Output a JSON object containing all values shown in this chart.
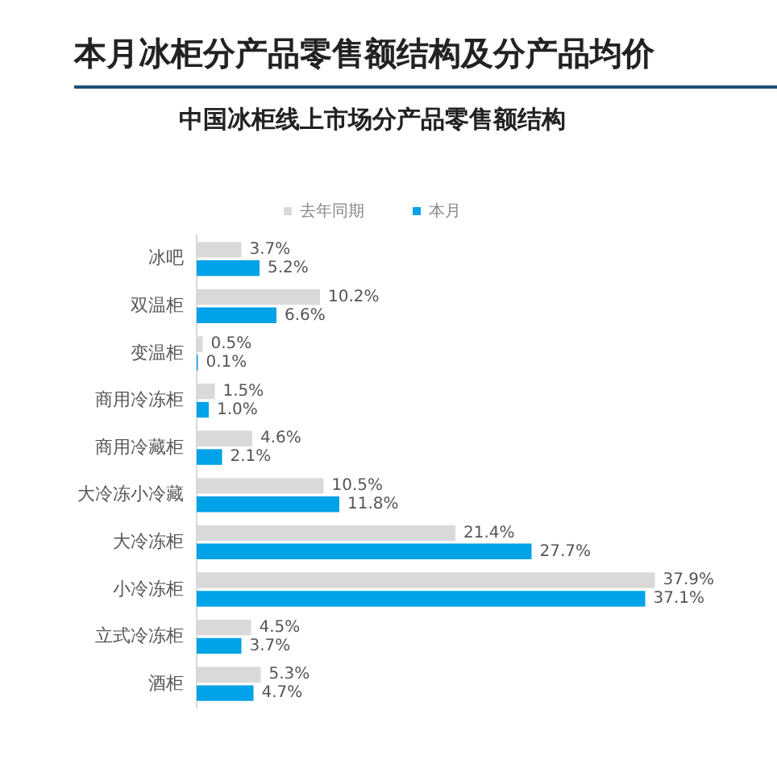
{
  "chart_data": {
    "type": "bar",
    "orientation": "horizontal",
    "title": "本月冰柜分产品零售额结构及分产品均价",
    "subtitle": "中国冰柜线上市场分产品零售额结构",
    "categories": [
      "冰吧",
      "双温柜",
      "变温柜",
      "商用冷冻柜",
      "商用冷藏柜",
      "大冷冻小冷藏",
      "大冷冻柜",
      "小冷冻柜",
      "立式冷冻柜",
      "酒柜"
    ],
    "series": [
      {
        "name": "去年同期",
        "color": "#d9d9d9",
        "values": [
          3.7,
          10.2,
          0.5,
          1.5,
          4.6,
          10.5,
          21.4,
          37.9,
          4.5,
          5.3
        ],
        "value_labels": [
          "3.7%",
          "10.2%",
          "0.5%",
          "1.5%",
          "4.6%",
          "10.5%",
          "21.4%",
          "37.9%",
          "4.5%",
          "5.3%"
        ]
      },
      {
        "name": "本月",
        "color": "#00a2e8",
        "values": [
          5.2,
          6.6,
          0.1,
          1.0,
          2.1,
          11.8,
          27.7,
          37.1,
          3.7,
          4.7
        ],
        "value_labels": [
          "5.2%",
          "6.6%",
          "0.1%",
          "1.0%",
          "2.1%",
          "11.8%",
          "27.7%",
          "37.1%",
          "3.7%",
          "4.7%"
        ]
      }
    ],
    "legend": "top"
  }
}
